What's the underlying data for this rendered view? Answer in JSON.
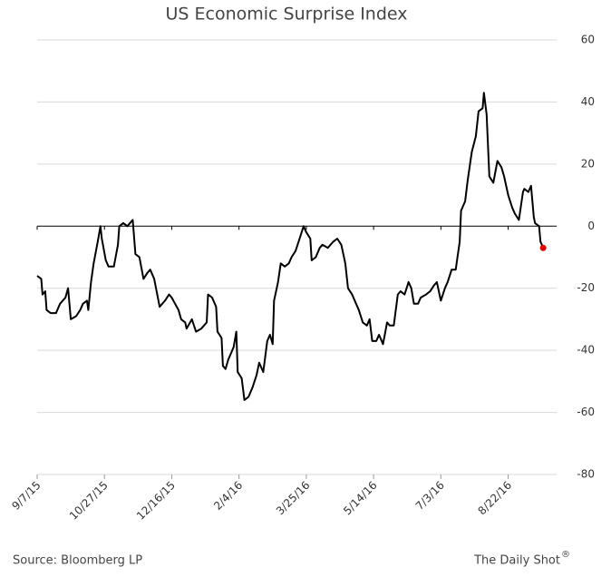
{
  "chart_data": {
    "type": "line",
    "title": "US Economic Surprise Index",
    "source": "Source: Bloomberg LP",
    "brand": "The Daily Shot",
    "brand_mark": "®",
    "x": [
      "9/7/15",
      "9/10/15",
      "9/11/15",
      "9/13/15",
      "9/14/15",
      "9/17/15",
      "9/21/15",
      "9/24/15",
      "9/28/15",
      "9/30/15",
      "10/2/15",
      "10/6/15",
      "10/9/15",
      "10/11/15",
      "10/14/15",
      "10/15/15",
      "10/17/15",
      "10/19/15",
      "10/22/15",
      "10/24/15",
      "10/25/15",
      "10/28/15",
      "10/30/15",
      "11/3/15",
      "11/6/15",
      "11/7/15",
      "11/10/15",
      "11/13/15",
      "11/17/15",
      "11/19/15",
      "11/22/15",
      "11/25/15",
      "11/28/15",
      "11/30/15",
      "12/3/15",
      "12/7/15",
      "12/11/15",
      "12/14/15",
      "12/16/15",
      "12/21/15",
      "12/23/15",
      "12/26/15",
      "12/27/15",
      "12/31/15",
      "1/3/16",
      "1/7/16",
      "1/11/16",
      "1/12/16",
      "1/15/16",
      "1/18/16",
      "1/19/16",
      "1/22/16",
      "1/23/16",
      "1/25/16",
      "1/27/16",
      "1/31/16",
      "2/2/16",
      "2/3/16",
      "2/6/16",
      "2/8/16",
      "2/11/16",
      "2/14/16",
      "2/17/16",
      "2/19/16",
      "2/22/16",
      "2/25/16",
      "2/27/16",
      "2/29/16",
      "3/1/16",
      "3/4/16",
      "3/6/16",
      "3/9/16",
      "3/12/16",
      "3/14/16",
      "3/17/16",
      "3/20/16",
      "3/23/16",
      "3/25/16",
      "3/28/16",
      "3/29/16",
      "4/1/16",
      "4/4/16",
      "4/6/16",
      "4/10/16",
      "4/14/16",
      "4/17/16",
      "4/20/16",
      "4/23/16",
      "4/25/16",
      "4/28/16",
      "5/1/16",
      "5/3/16",
      "5/6/16",
      "5/9/16",
      "5/11/16",
      "5/13/16",
      "5/16/16",
      "5/18/16",
      "5/21/16",
      "5/24/16",
      "5/26/16",
      "5/29/16",
      "6/1/16",
      "6/3/16",
      "6/6/16",
      "6/9/16",
      "6/11/16",
      "6/13/16",
      "6/16/16",
      "6/18/16",
      "6/22/16",
      "6/25/16",
      "6/28/16",
      "6/30/16",
      "7/3/16",
      "7/6/16",
      "7/8/16",
      "7/11/16",
      "7/14/16",
      "7/17/16",
      "7/18/16",
      "7/21/16",
      "7/23/16",
      "7/26/16",
      "7/29/16",
      "7/31/16",
      "8/3/16",
      "8/4/16",
      "8/6/16",
      "8/8/16",
      "8/11/16",
      "8/14/16",
      "8/17/16",
      "8/19/16",
      "8/22/16",
      "8/25/16",
      "8/27/16",
      "8/30/16",
      "9/2/16",
      "9/3/16",
      "9/6/16",
      "9/8/16",
      "9/10/16",
      "9/11/16",
      "9/14/16",
      "9/15/16",
      "9/17/16"
    ],
    "series": [
      {
        "color": "#000000",
        "values": [
          -16,
          -17,
          -22,
          -21,
          -27,
          -28,
          -28,
          -25,
          -23,
          -20,
          -30,
          -29,
          -27,
          -25,
          -24,
          -27,
          -18,
          -12,
          -5,
          0,
          -4,
          -11,
          -13,
          -13,
          -6,
          0,
          1,
          0,
          2,
          -9,
          -10,
          -17,
          -15,
          -14,
          -17,
          -26,
          -24,
          -22,
          -23,
          -27,
          -30,
          -31,
          -33,
          -30,
          -34,
          -33,
          -31,
          -22,
          -23,
          -26,
          -34,
          -36,
          -45,
          -46,
          -43,
          -39,
          -34,
          -47,
          -49,
          -56,
          -55,
          -52,
          -48,
          -44,
          -47,
          -37,
          -35,
          -38,
          -24,
          -18,
          -12,
          -13,
          -12,
          -10,
          -8,
          -4,
          0,
          -2,
          -4,
          -11,
          -10,
          -7,
          -6,
          -7,
          -5,
          -4,
          -6,
          -12,
          -20,
          -22,
          -25,
          -27,
          -31,
          -32,
          -30,
          -37,
          -37,
          -35,
          -38,
          -31,
          -32,
          -32,
          -22,
          -21,
          -22,
          -18,
          -20,
          -25,
          -25,
          -23,
          -22,
          -21,
          -19,
          -18,
          -24,
          -20,
          -18,
          -14,
          -14,
          -5,
          5,
          8,
          15,
          24,
          29,
          37,
          38,
          43,
          36,
          16,
          14,
          21,
          19,
          16,
          10,
          6,
          4,
          2,
          11,
          12,
          11,
          13,
          3,
          1,
          0,
          -5,
          -7
        ]
      }
    ],
    "last_point_color": "#e00000",
    "xlim": [
      "9/7/15",
      "9/27/16"
    ],
    "xticks": [
      "9/7/15",
      "10/27/15",
      "12/16/15",
      "2/4/16",
      "3/25/16",
      "5/14/16",
      "7/3/16",
      "8/22/16"
    ],
    "ylim": [
      -80,
      60
    ],
    "yticks": [
      -80,
      -60,
      -40,
      -20,
      0,
      20,
      40,
      60
    ],
    "grid": true
  }
}
